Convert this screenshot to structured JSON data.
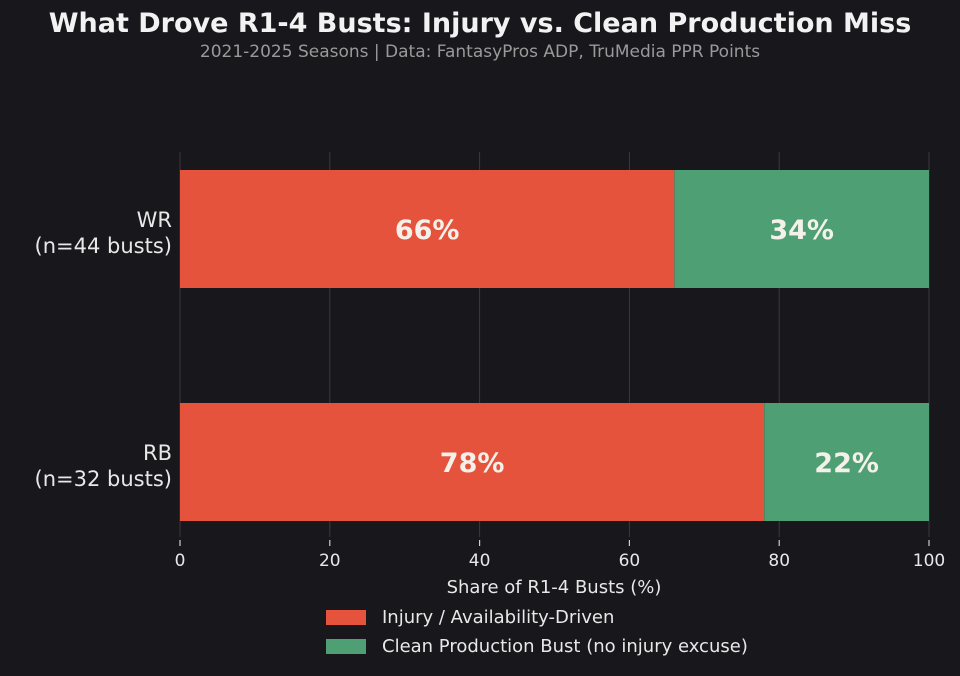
{
  "title": "What Drove R1-4 Busts: Injury vs. Clean Production Miss",
  "subtitle": "2021-2025 Seasons  |  Data: FantasyPros ADP, TruMedia PPR Points",
  "colors": {
    "injury": "#e5533c",
    "clean": "#4e9f74",
    "background": "#17171c",
    "grid": "#3a3a40"
  },
  "chart_data": {
    "type": "bar",
    "orientation": "horizontal",
    "stacked": true,
    "categories": [
      {
        "label_line1": "WR",
        "label_line2": "(n=44 busts)"
      },
      {
        "label_line1": "RB",
        "label_line2": "(n=32 busts)"
      }
    ],
    "series": [
      {
        "name": "Injury / Availability-Driven",
        "values": [
          66,
          78
        ],
        "labels": [
          "66%",
          "78%"
        ]
      },
      {
        "name": "Clean Production Bust (no injury excuse)",
        "values": [
          34,
          22
        ],
        "labels": [
          "34%",
          "22%"
        ]
      }
    ],
    "xlabel": "Share of R1-4 Busts (%)",
    "xlim": [
      0,
      100
    ],
    "xticks": [
      "0",
      "20",
      "40",
      "60",
      "80",
      "100"
    ],
    "grid": "vertical",
    "legend": "bottom-center"
  }
}
